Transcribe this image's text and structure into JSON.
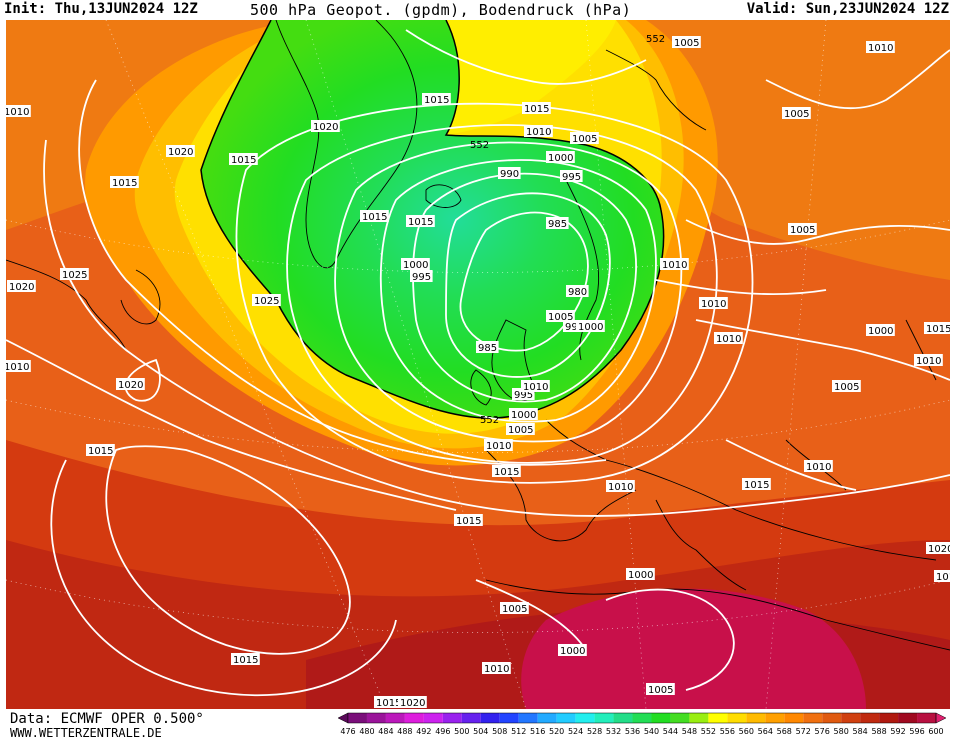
{
  "header": {
    "init": "Init: Thu,13JUN2024 12Z",
    "title": "500 hPa Geopot. (gpdm), Bodendruck (hPa)",
    "valid": "Valid: Sun,23JUN2024 12Z"
  },
  "footer": {
    "data_source": "Data: ECMWF OPER 0.500°",
    "website": "WWW.WETTERZENTRALE.DE"
  },
  "colorbar": {
    "levels": [
      476,
      480,
      484,
      488,
      492,
      496,
      500,
      504,
      508,
      512,
      516,
      520,
      524,
      528,
      532,
      536,
      540,
      544,
      548,
      552,
      556,
      560,
      564,
      568,
      572,
      576,
      580,
      584,
      588,
      592,
      596,
      600
    ],
    "colors": [
      "#5a0a5a",
      "#7a0f7a",
      "#9a149a",
      "#bb18bb",
      "#dd1ddd",
      "#cc22ee",
      "#9922ee",
      "#6622ee",
      "#3322ee",
      "#2244ff",
      "#2277ff",
      "#22aaff",
      "#22ccff",
      "#22eeee",
      "#22eebb",
      "#22dd88",
      "#22dd55",
      "#22dd22",
      "#44dd22",
      "#99ee11",
      "#ffff00",
      "#ffdd00",
      "#ffbb00",
      "#ffa000",
      "#ff8800",
      "#f07010",
      "#e05a10",
      "#d04010",
      "#c02a10",
      "#b01a10",
      "#a00a20",
      "#b81040",
      "#e02070"
    ]
  },
  "map_labels": {
    "geopot": [
      "552",
      "552",
      "552"
    ],
    "pressure": [
      "1010",
      "1015",
      "1020",
      "1015",
      "1015",
      "1020",
      "1015",
      "1010",
      "1005",
      "1000",
      "995",
      "990",
      "1000",
      "995",
      "985",
      "980",
      "990",
      "985",
      "995",
      "1000",
      "1005",
      "1010",
      "1015",
      "1020",
      "1025",
      "1025",
      "1020",
      "1015",
      "1015",
      "1015",
      "1015",
      "1010",
      "1005",
      "1000",
      "1000",
      "1010",
      "1005",
      "1010",
      "1010",
      "1010",
      "1005",
      "1010",
      "1005",
      "1005",
      "1000",
      "1015",
      "1010",
      "1005",
      "1010",
      "1015",
      "1020",
      "1010",
      "1015",
      "1015",
      "1020",
      "1010",
      "1005",
      "1000",
      "1010"
    ]
  }
}
